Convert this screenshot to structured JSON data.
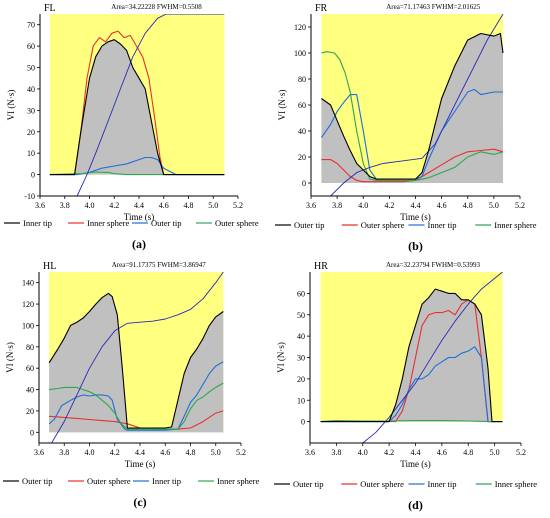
{
  "colors": {
    "plot_background": "#ffff80",
    "area_fill": "#c0c0c0",
    "black": "#000000",
    "red": "#e8312f",
    "blue": "#1e6fd9",
    "green": "#2fa64f",
    "navy": "#2a2ab8"
  },
  "chart_data": [
    {
      "type": "line",
      "panel_label": "FL",
      "area_text": "Area=34.22228 FWHM=0.5508",
      "xlabel": "Time (s)",
      "ylabel": "VI (N·s)",
      "caption": "(a)",
      "xlim": [
        3.6,
        5.2
      ],
      "ylim": [
        -10,
        75
      ],
      "xticks": [
        "3.6",
        "3.8",
        "4.0",
        "4.2",
        "4.4",
        "4.6",
        "4.8",
        "5.0",
        "5.2"
      ],
      "yticks": [
        "-10",
        "0",
        "10",
        "20",
        "30",
        "40",
        "50",
        "60",
        "70"
      ],
      "plot_x_range": [
        3.68,
        5.09
      ],
      "series": [
        {
          "name": "Inner tip",
          "color": "#000000",
          "fill": true,
          "x": [
            3.68,
            3.88,
            3.93,
            4.0,
            4.05,
            4.1,
            4.15,
            4.2,
            4.25,
            4.3,
            4.35,
            4.4,
            4.45,
            4.5,
            4.55,
            4.6,
            5.09
          ],
          "y": [
            0,
            0,
            20,
            45,
            55,
            60,
            62,
            63,
            61,
            58,
            50,
            45,
            40,
            25,
            10,
            0,
            0
          ]
        },
        {
          "name": "Inner sphere",
          "color": "#e8312f",
          "x": [
            3.68,
            3.88,
            3.93,
            3.98,
            4.03,
            4.08,
            4.13,
            4.18,
            4.23,
            4.28,
            4.33,
            4.38,
            4.43,
            4.48,
            4.53,
            4.57,
            4.6,
            5.09
          ],
          "y": [
            0,
            0,
            20,
            45,
            60,
            64,
            62,
            66,
            67,
            64,
            65,
            60,
            55,
            45,
            25,
            8,
            0,
            0
          ]
        },
        {
          "name": "Outer tip",
          "color": "#1e6fd9",
          "x": [
            3.68,
            3.9,
            4.0,
            4.1,
            4.2,
            4.3,
            4.4,
            4.45,
            4.5,
            4.55,
            4.6,
            4.7,
            5.09
          ],
          "y": [
            0,
            0,
            1,
            3,
            4,
            5,
            7,
            8,
            8,
            7,
            3,
            0,
            0
          ]
        },
        {
          "name": "Outer sphere",
          "color": "#2fa64f",
          "x": [
            3.68,
            3.95,
            4.05,
            4.15,
            4.2,
            4.3,
            5.09
          ],
          "y": [
            0,
            0.5,
            1.2,
            1.0,
            0.4,
            0,
            0
          ]
        },
        {
          "name": "",
          "color": "#2a2ab8",
          "cumulative": true,
          "x": [
            3.9,
            3.98,
            4.05,
            4.15,
            4.25,
            4.35,
            4.45,
            4.55,
            4.62,
            5.09
          ],
          "y": [
            -10,
            0,
            10,
            25,
            40,
            55,
            66,
            73,
            75,
            75
          ]
        }
      ],
      "legend": [
        "Inner tip",
        "Inner sphere",
        "Outer tip",
        "Outer sphere"
      ]
    },
    {
      "type": "line",
      "panel_label": "FR",
      "area_text": "Area=71.17463 FWHM=2.01625",
      "xlabel": "Time (s)",
      "ylabel": "VI (N·s)",
      "caption": "(b)",
      "xlim": [
        3.6,
        5.2
      ],
      "ylim": [
        -10,
        130
      ],
      "xticks": [
        "3.6",
        "3.8",
        "4.0",
        "4.2",
        "4.4",
        "4.6",
        "4.8",
        "5.0",
        "5.2"
      ],
      "yticks": [
        "0",
        "20",
        "40",
        "60",
        "80",
        "100",
        "120"
      ],
      "plot_x_range": [
        3.68,
        5.07
      ],
      "series": [
        {
          "name": "Outer tip",
          "color": "#000000",
          "fill": true,
          "x": [
            3.68,
            3.75,
            3.8,
            3.85,
            3.9,
            3.95,
            4.0,
            4.05,
            4.1,
            4.2,
            4.3,
            4.4,
            4.45,
            4.5,
            4.55,
            4.6,
            4.7,
            4.8,
            4.9,
            5.0,
            5.05,
            5.07
          ],
          "y": [
            65,
            60,
            48,
            36,
            25,
            15,
            10,
            5,
            3,
            3,
            3,
            3,
            8,
            25,
            45,
            65,
            90,
            110,
            115,
            113,
            115,
            100
          ]
        },
        {
          "name": "Outer sphere",
          "color": "#e8312f",
          "x": [
            3.68,
            3.75,
            3.8,
            3.85,
            3.9,
            3.95,
            4.0,
            4.1,
            4.3,
            4.4,
            4.5,
            4.6,
            4.7,
            4.8,
            4.9,
            5.0,
            5.07
          ],
          "y": [
            18,
            18,
            15,
            10,
            5,
            2,
            1,
            1,
            1,
            2,
            8,
            14,
            20,
            24,
            25,
            26,
            24
          ]
        },
        {
          "name": "Inner tip",
          "color": "#1e6fd9",
          "x": [
            3.68,
            3.75,
            3.8,
            3.85,
            3.9,
            3.95,
            4.0,
            4.05,
            4.1,
            4.2,
            4.3,
            4.4,
            4.45,
            4.5,
            4.6,
            4.7,
            4.8,
            4.85,
            4.9,
            5.0,
            5.07
          ],
          "y": [
            35,
            45,
            55,
            62,
            68,
            68,
            40,
            10,
            3,
            3,
            3,
            3,
            5,
            18,
            40,
            55,
            70,
            72,
            68,
            70,
            70
          ]
        },
        {
          "name": "Inner sphere",
          "color": "#2fa64f",
          "x": [
            3.68,
            3.72,
            3.78,
            3.82,
            3.86,
            3.9,
            3.95,
            4.0,
            4.05,
            4.1,
            4.2,
            4.3,
            4.4,
            4.5,
            4.6,
            4.7,
            4.8,
            4.9,
            5.0,
            5.07
          ],
          "y": [
            100,
            101,
            100,
            95,
            85,
            70,
            40,
            15,
            3,
            2,
            2,
            2,
            2,
            4,
            8,
            12,
            20,
            24,
            22,
            24
          ]
        },
        {
          "name": "",
          "color": "#2a2ab8",
          "cumulative": true,
          "x": [
            3.75,
            3.85,
            3.95,
            4.05,
            4.15,
            4.3,
            4.45,
            4.55,
            4.65,
            4.75,
            4.85,
            4.95,
            5.07
          ],
          "y": [
            -10,
            0,
            8,
            12,
            15,
            17,
            19,
            30,
            50,
            70,
            90,
            110,
            130
          ]
        }
      ],
      "legend": [
        "Outer tip",
        "Outer sphere",
        "Inner tip",
        "Inner sphere"
      ]
    },
    {
      "type": "line",
      "panel_label": "HL",
      "area_text": "Area=91.17375 FWHM=3.86947",
      "xlabel": "Time (s)",
      "ylabel": "VI (N·s)",
      "caption": "(c)",
      "xlim": [
        3.6,
        5.2
      ],
      "ylim": [
        -10,
        150
      ],
      "xticks": [
        "3.6",
        "3.8",
        "4.0",
        "4.2",
        "4.4",
        "4.6",
        "4.8",
        "5.0",
        "5.2"
      ],
      "yticks": [
        "0",
        "20",
        "40",
        "60",
        "80",
        "100",
        "120",
        "140"
      ],
      "plot_x_range": [
        3.68,
        5.06
      ],
      "series": [
        {
          "name": "Outer tip",
          "color": "#000000",
          "fill": true,
          "x": [
            3.68,
            3.75,
            3.8,
            3.85,
            3.9,
            3.95,
            4.0,
            4.05,
            4.1,
            4.15,
            4.18,
            4.22,
            4.26,
            4.3,
            4.4,
            4.5,
            4.6,
            4.65,
            4.7,
            4.75,
            4.8,
            4.85,
            4.9,
            4.95,
            5.0,
            5.06
          ],
          "y": [
            65,
            78,
            88,
            100,
            103,
            107,
            113,
            120,
            126,
            130,
            127,
            110,
            60,
            4,
            4,
            4,
            4,
            5,
            30,
            55,
            70,
            78,
            88,
            100,
            108,
            113
          ]
        },
        {
          "name": "Outer sphere",
          "color": "#e8312f",
          "x": [
            3.68,
            3.8,
            3.9,
            4.0,
            4.1,
            4.2,
            4.3,
            4.4,
            4.5,
            4.6,
            4.7,
            4.8,
            4.9,
            5.0,
            5.06
          ],
          "y": [
            15,
            14,
            13,
            12,
            11,
            10,
            8,
            4,
            3,
            3,
            3,
            4,
            10,
            18,
            20
          ]
        },
        {
          "name": "Inner tip",
          "color": "#1e6fd9",
          "x": [
            3.68,
            3.72,
            3.78,
            3.85,
            3.9,
            3.95,
            4.0,
            4.05,
            4.1,
            4.15,
            4.18,
            4.22,
            4.28,
            4.3,
            4.4,
            4.5,
            4.6,
            4.7,
            4.75,
            4.8,
            4.85,
            4.9,
            4.95,
            5.0,
            5.06
          ],
          "y": [
            8,
            12,
            25,
            30,
            33,
            35,
            34,
            35,
            35,
            34,
            30,
            12,
            3,
            2,
            2,
            2,
            2,
            3,
            15,
            28,
            35,
            45,
            55,
            62,
            66
          ]
        },
        {
          "name": "Inner sphere",
          "color": "#2fa64f",
          "x": [
            3.68,
            3.75,
            3.8,
            3.85,
            3.9,
            3.95,
            4.0,
            4.05,
            4.1,
            4.15,
            4.2,
            4.25,
            4.3,
            4.4,
            4.5,
            4.6,
            4.7,
            4.75,
            4.8,
            4.85,
            4.9,
            4.95,
            5.0,
            5.06
          ],
          "y": [
            40,
            41,
            42,
            42,
            42,
            40,
            38,
            35,
            30,
            25,
            18,
            8,
            3,
            3,
            3,
            3,
            3,
            10,
            22,
            30,
            33,
            38,
            42,
            46
          ]
        },
        {
          "name": "",
          "color": "#2a2ab8",
          "cumulative": true,
          "x": [
            3.7,
            3.8,
            3.9,
            4.0,
            4.1,
            4.2,
            4.3,
            4.4,
            4.5,
            4.6,
            4.7,
            4.8,
            4.9,
            5.0,
            5.06
          ],
          "y": [
            -10,
            10,
            35,
            60,
            80,
            95,
            102,
            103,
            104,
            106,
            110,
            115,
            125,
            140,
            150
          ]
        }
      ],
      "legend": [
        "Outer tip",
        "Outer sphere",
        "Inner tip",
        "Inner sphere"
      ]
    },
    {
      "type": "line",
      "panel_label": "HR",
      "area_text": "Area=32.23794 FWHM=0.53993",
      "xlabel": "Time (s)",
      "ylabel": "VI (N·s)",
      "caption": "(d)",
      "xlim": [
        3.6,
        5.2
      ],
      "ylim": [
        -10,
        70
      ],
      "xticks": [
        "3.6",
        "3.8",
        "4.0",
        "4.2",
        "4.4",
        "4.6",
        "4.8",
        "5.0",
        "5.2"
      ],
      "yticks": [
        "0",
        "10",
        "20",
        "30",
        "40",
        "50",
        "60"
      ],
      "plot_x_range": [
        3.68,
        5.06
      ],
      "series": [
        {
          "name": "Outer tip",
          "color": "#000000",
          "fill": true,
          "x": [
            3.68,
            4.2,
            4.25,
            4.3,
            4.35,
            4.4,
            4.45,
            4.5,
            4.55,
            4.6,
            4.65,
            4.7,
            4.75,
            4.8,
            4.85,
            4.9,
            4.95,
            4.98,
            5.06
          ],
          "y": [
            0,
            0,
            8,
            20,
            35,
            45,
            55,
            58,
            62,
            61,
            60,
            60,
            57,
            57,
            55,
            50,
            25,
            0,
            0
          ]
        },
        {
          "name": "Outer sphere",
          "color": "#e8312f",
          "x": [
            3.68,
            4.25,
            4.3,
            4.35,
            4.4,
            4.45,
            4.5,
            4.55,
            4.6,
            4.65,
            4.7,
            4.75,
            4.8,
            4.85,
            4.9,
            4.95,
            5.06
          ],
          "y": [
            0,
            0,
            5,
            15,
            30,
            45,
            50,
            51,
            51,
            52,
            50,
            55,
            57,
            55,
            30,
            0,
            0
          ]
        },
        {
          "name": "Inner tip",
          "color": "#1e6fd9",
          "x": [
            3.68,
            4.2,
            4.25,
            4.3,
            4.35,
            4.4,
            4.45,
            4.5,
            4.55,
            4.6,
            4.65,
            4.7,
            4.75,
            4.8,
            4.85,
            4.9,
            4.95,
            5.06
          ],
          "y": [
            0,
            0,
            3,
            8,
            15,
            20,
            20,
            22,
            26,
            28,
            30,
            30,
            32,
            33,
            35,
            30,
            0,
            0
          ]
        },
        {
          "name": "Inner sphere",
          "color": "#2fa64f",
          "x": [
            3.68,
            3.8,
            4.0,
            4.2,
            4.4,
            4.6,
            4.8,
            4.95,
            5.06
          ],
          "y": [
            0,
            0.5,
            0.3,
            0.3,
            0.5,
            0.5,
            0.3,
            0,
            0
          ]
        },
        {
          "name": "",
          "color": "#2a2ab8",
          "cumulative": true,
          "x": [
            4.0,
            4.1,
            4.2,
            4.3,
            4.4,
            4.5,
            4.6,
            4.7,
            4.8,
            4.9,
            5.0,
            5.06
          ],
          "y": [
            -10,
            -5,
            2,
            10,
            18,
            28,
            38,
            47,
            55,
            62,
            67,
            70
          ]
        }
      ],
      "legend": [
        "Outer tip",
        "Outer sphere",
        "Inner tip",
        "Inner sphere"
      ]
    }
  ]
}
